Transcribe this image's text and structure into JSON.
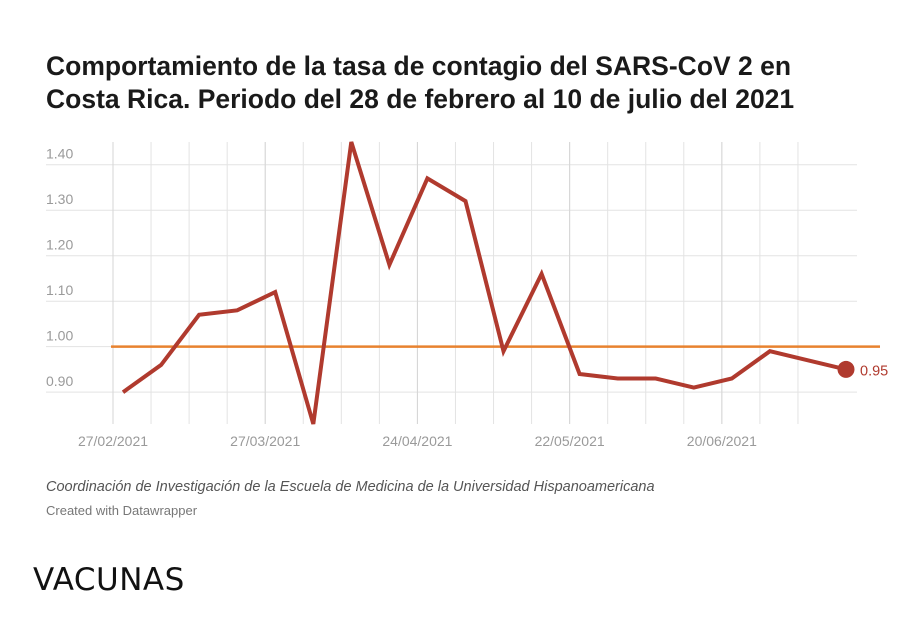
{
  "title_lines": [
    "Comportamiento de la tasa de contagio del SARS-CoV 2 en",
    "Costa Rica. Periodo del 28 de febrero al 10 de julio del 2021"
  ],
  "source": "Coordinación de Investigación de la Escuela de Medicina de la Universidad Hispanoamericana",
  "credit": "Created with Datawrapper",
  "footer_word": "VACUNAS",
  "chart_data": {
    "type": "line",
    "title": "Comportamiento de la tasa de contagio del SARS-CoV 2 en Costa Rica. Periodo del 28 de febrero al 10 de julio del 2021",
    "xlabel": "",
    "ylabel": "",
    "x_tick_labels": [
      "27/02/2021",
      "27/03/2021",
      "24/04/2021",
      "22/05/2021",
      "20/06/2021"
    ],
    "y_tick_labels": [
      "0.90",
      "1.00",
      "1.10",
      "1.20",
      "1.30",
      "1.40"
    ],
    "y_ticks": [
      0.9,
      1.0,
      1.1,
      1.2,
      1.3,
      1.4
    ],
    "ylim": [
      0.83,
      1.45
    ],
    "grid": true,
    "series": [
      {
        "values": [
          0.9,
          0.96,
          1.07,
          1.08,
          1.12,
          0.83,
          1.45,
          1.18,
          1.37,
          1.32,
          0.99,
          1.16,
          0.94,
          0.93,
          0.93,
          0.91,
          0.93,
          0.99,
          0.97,
          0.95
        ],
        "color": "#b03a2e"
      }
    ],
    "reference_line": {
      "value": 1.0,
      "color": "#e8822f"
    },
    "last_value_label": "0.95",
    "colors": {
      "line": "#b03a2e",
      "reference": "#e8822f",
      "grid": "#e3e3e3",
      "tick_text": "#9a9a9a"
    }
  }
}
